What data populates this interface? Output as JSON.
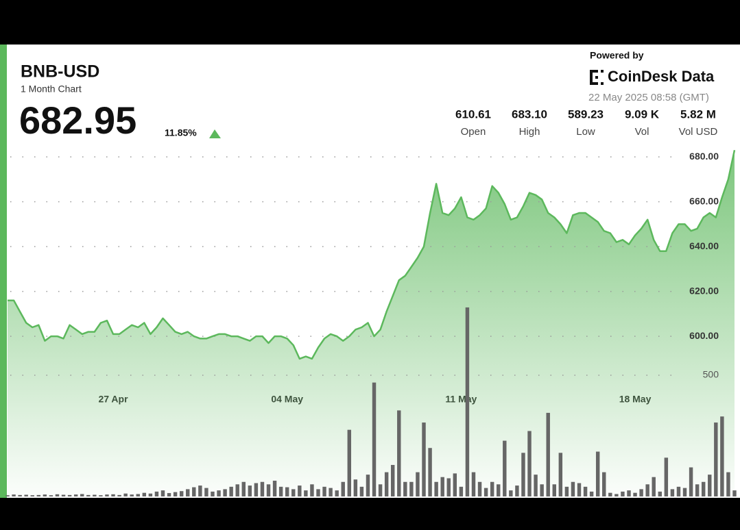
{
  "header": {
    "symbol": "BNB-USD",
    "subtitle": "1 Month Chart",
    "price": "682.95",
    "change": "11.85%",
    "powered_by": "Powered by",
    "brand": "CoinDesk Data",
    "timestamp": "22 May 2025 08:58 (GMT)",
    "stats": [
      {
        "value": "610.61",
        "label": "Open"
      },
      {
        "value": "683.10",
        "label": "High"
      },
      {
        "value": "589.23",
        "label": "Low"
      },
      {
        "value": "9.09 K",
        "label": "Vol"
      },
      {
        "value": "5.82 M",
        "label": "Vol USD"
      }
    ]
  },
  "chart_data": {
    "type": "line",
    "categories": [
      null,
      null,
      null,
      null,
      null,
      null,
      null,
      null,
      null,
      null,
      null,
      null,
      null,
      null,
      null,
      null,
      null,
      "27 Apr",
      null,
      null,
      null,
      null,
      null,
      null,
      null,
      null,
      null,
      null,
      null,
      null,
      null,
      null,
      null,
      null,
      null,
      null,
      null,
      null,
      null,
      null,
      null,
      null,
      null,
      null,
      null,
      "04 May",
      null,
      null,
      null,
      null,
      null,
      null,
      null,
      null,
      null,
      null,
      null,
      null,
      null,
      null,
      null,
      null,
      null,
      null,
      null,
      null,
      null,
      null,
      null,
      null,
      null,
      null,
      null,
      "11 May",
      null,
      null,
      null,
      null,
      null,
      null,
      null,
      null,
      null,
      null,
      null,
      null,
      null,
      null,
      null,
      null,
      null,
      null,
      null,
      null,
      null,
      null,
      null,
      null,
      null,
      null,
      null,
      "18 May",
      null,
      null,
      null,
      null,
      null,
      null,
      null,
      null,
      null,
      null,
      null,
      null,
      null,
      null,
      null,
      null
    ],
    "series": [
      {
        "color": "#5cb85c",
        "values": [
          616,
          616,
          611,
          606,
          604,
          605,
          598,
          600,
          600,
          599,
          605,
          603,
          601,
          602,
          602,
          606,
          607,
          601,
          601,
          603,
          605,
          604,
          606,
          601,
          604,
          608,
          605,
          602,
          601,
          602,
          600,
          599,
          599,
          600,
          601,
          601,
          600,
          600,
          599,
          598,
          600,
          600,
          597,
          600,
          600,
          599,
          596,
          590,
          591,
          590,
          595,
          599,
          601,
          600,
          598,
          600,
          603,
          604,
          606,
          600,
          603,
          611,
          618,
          625,
          627,
          631,
          635,
          640,
          655,
          668,
          655,
          654,
          657,
          662,
          653,
          652,
          654,
          657,
          667,
          664,
          659,
          652,
          653,
          658,
          664,
          663,
          661,
          655,
          653,
          650,
          646,
          654,
          655,
          655,
          653,
          651,
          647,
          646,
          642,
          643,
          641,
          645,
          648,
          652,
          643,
          638,
          638,
          646,
          650,
          650,
          647,
          648,
          653,
          655,
          653,
          662,
          670,
          683
        ]
      },
      {
        "type": "bar",
        "color": "#666666",
        "axis": "y2",
        "values": [
          5,
          8,
          6,
          7,
          5,
          6,
          8,
          5,
          9,
          7,
          6,
          8,
          10,
          6,
          7,
          5,
          8,
          9,
          6,
          12,
          8,
          10,
          15,
          12,
          20,
          25,
          14,
          18,
          22,
          30,
          38,
          45,
          35,
          20,
          25,
          30,
          40,
          50,
          60,
          45,
          55,
          60,
          50,
          65,
          40,
          38,
          30,
          45,
          25,
          50,
          30,
          40,
          35,
          25,
          60,
          275,
          70,
          40,
          90,
          470,
          50,
          100,
          130,
          355,
          60,
          60,
          100,
          305,
          200,
          60,
          80,
          75,
          95,
          40,
          780,
          100,
          60,
          35,
          60,
          50,
          230,
          25,
          45,
          180,
          270,
          90,
          50,
          345,
          50,
          180,
          40,
          60,
          55,
          40,
          20,
          185,
          100,
          15,
          10,
          20,
          25,
          15,
          30,
          50,
          80,
          20,
          160,
          30,
          40,
          35,
          120,
          50,
          60,
          90,
          305,
          330,
          100,
          25
        ]
      }
    ],
    "ylim": [
      528.6,
      684.3
    ],
    "yticks": [
      {
        "value": 600,
        "label": "600.00"
      },
      {
        "value": 620,
        "label": "620.00"
      },
      {
        "value": 640,
        "label": "640.00"
      },
      {
        "value": 660,
        "label": "660.00"
      },
      {
        "value": 680,
        "label": "680.00"
      }
    ],
    "y2lim": [
      0,
      1441
    ],
    "y2ticks": [
      500
    ],
    "grid": true
  }
}
